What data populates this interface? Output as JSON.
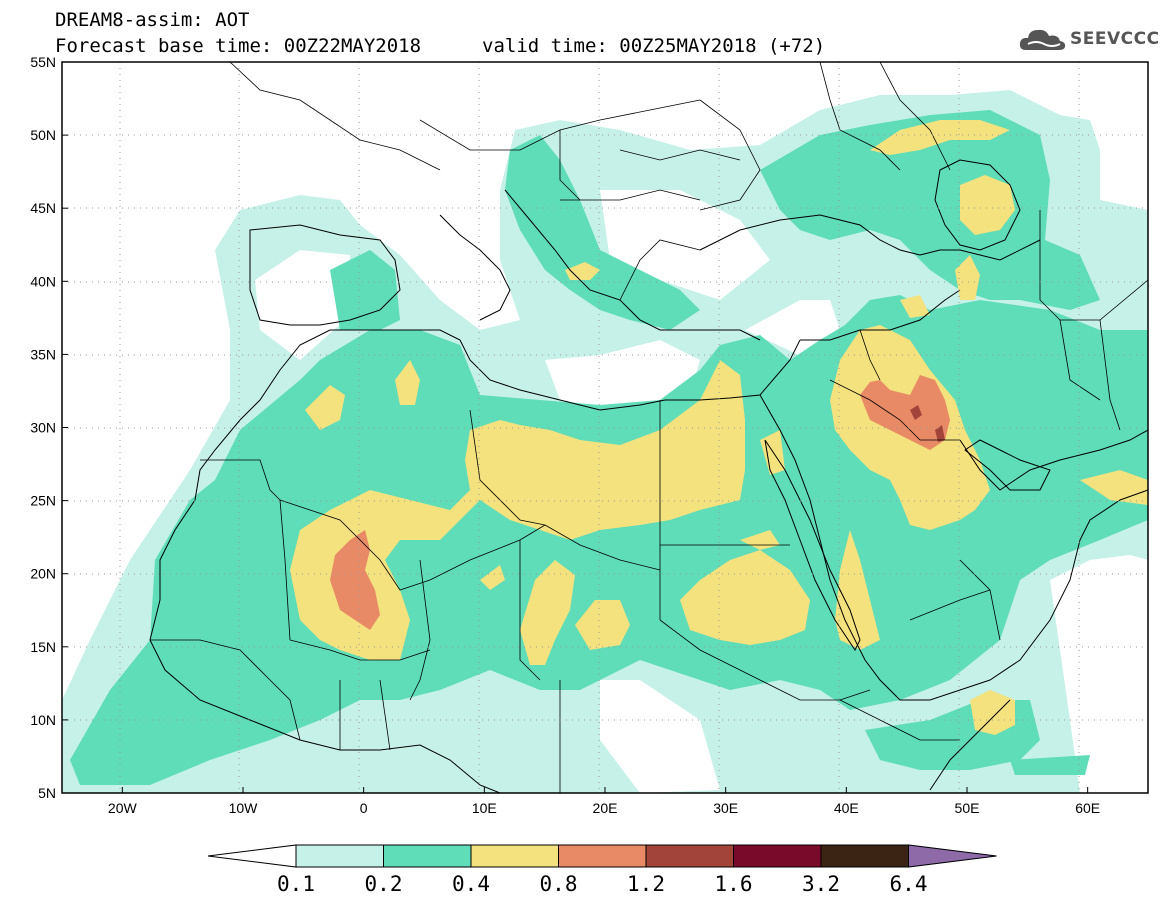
{
  "title": {
    "product": "DREAM8-assim: AOT",
    "base_time": "Forecast base time: 00Z22MAY2018",
    "valid_time": "valid time: 00Z25MAY2018 (+72)"
  },
  "logo": {
    "text": "SEEVCCC",
    "icon": "cloud-icon",
    "color": "#5a5a5a"
  },
  "axes": {
    "lon_ticks": [
      "20W",
      "10W",
      "0",
      "10E",
      "20E",
      "30E",
      "40E",
      "50E",
      "60E"
    ],
    "lon_values": [
      -20,
      -10,
      0,
      10,
      20,
      30,
      40,
      50,
      60
    ],
    "lat_ticks": [
      "55N",
      "50N",
      "45N",
      "40N",
      "35N",
      "30N",
      "25N",
      "20N",
      "15N",
      "10N",
      "5N"
    ],
    "lat_values": [
      55,
      50,
      45,
      40,
      35,
      30,
      25,
      20,
      15,
      10,
      5
    ],
    "lon_range": [
      -25,
      65
    ],
    "lat_range": [
      5,
      55
    ]
  },
  "colorbar": {
    "labels": [
      "0.1",
      "0.2",
      "0.4",
      "0.8",
      "1.2",
      "1.6",
      "3.2",
      "6.4"
    ],
    "colors": [
      "#ffffff",
      "#c6f1e8",
      "#5fdcb8",
      "#f4e27e",
      "#e88a66",
      "#a3443a",
      "#7a0a2a",
      "#3b2414",
      "#8e6aa8"
    ]
  },
  "field_colors": {
    "level_01_02": "#c6f1e8",
    "level_02_04": "#5fdcb8",
    "level_04_08": "#f4e27e",
    "level_08_12": "#e88a66",
    "level_12_16": "#a3443a"
  }
}
